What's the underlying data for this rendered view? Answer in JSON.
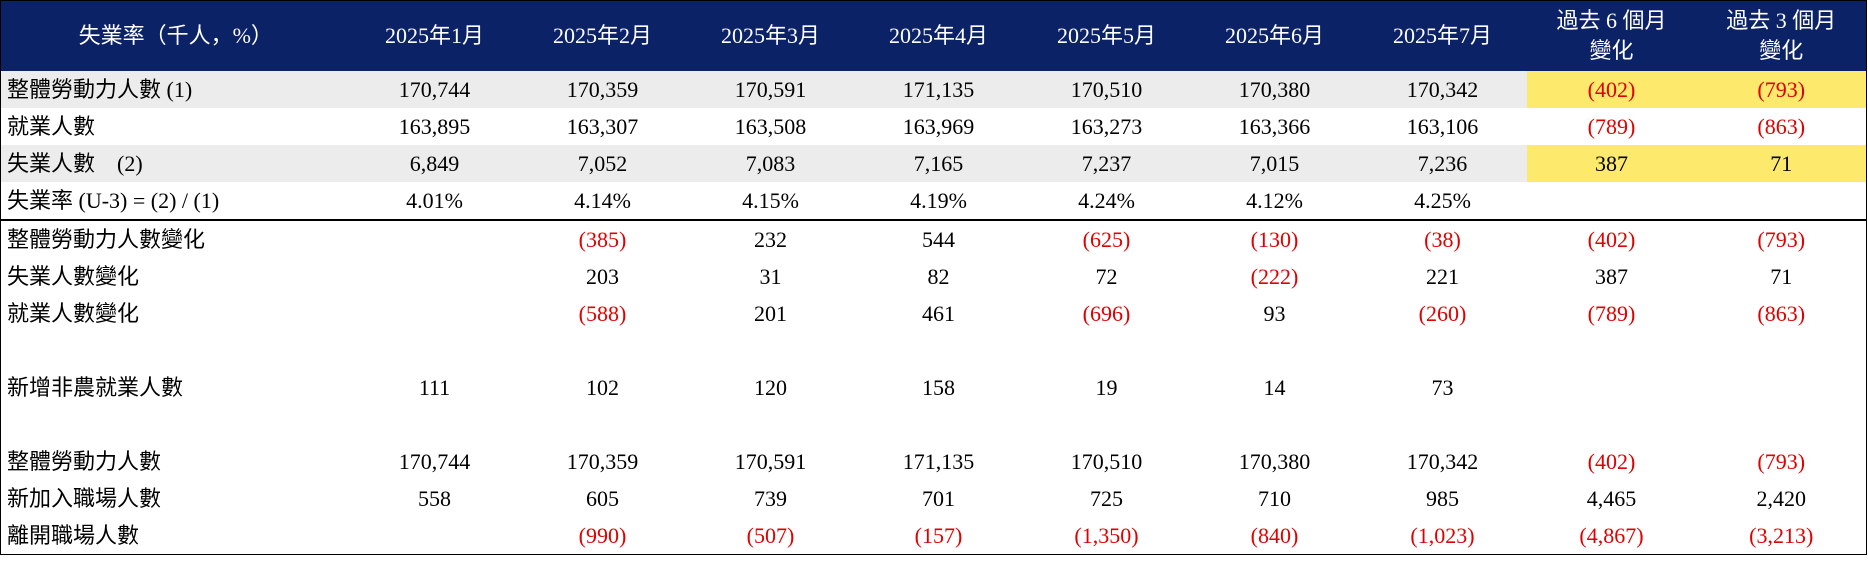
{
  "table": {
    "header": [
      [
        "失業率（千人，%）"
      ],
      [
        "2025年1月"
      ],
      [
        "2025年2月"
      ],
      [
        "2025年3月"
      ],
      [
        "2025年4月"
      ],
      [
        "2025年5月"
      ],
      [
        "2025年6月"
      ],
      [
        "2025年7月"
      ],
      [
        "過去 6 個月",
        "變化"
      ],
      [
        "過去 3 個月",
        "變化"
      ]
    ],
    "sections": [
      [
        {
          "label": "整體勞動力人數 (1)",
          "cells": [
            "170,744",
            "170,359",
            "170,591",
            "171,135",
            "170,510",
            "170,380",
            "170,342",
            "(402)",
            "(793)"
          ]
        },
        {
          "label": "就業人數",
          "cells": [
            "163,895",
            "163,307",
            "163,508",
            "163,969",
            "163,273",
            "163,366",
            "163,106",
            "(789)",
            "(863)"
          ]
        },
        {
          "label": "失業人數　(2)",
          "cells": [
            "6,849",
            "7,052",
            "7,083",
            "7,165",
            "7,237",
            "7,015",
            "7,236",
            "387",
            "71"
          ]
        },
        {
          "label": "失業率 (U-3) = (2) / (1)",
          "cells": [
            "4.01%",
            "4.14%",
            "4.15%",
            "4.19%",
            "4.24%",
            "4.12%",
            "4.25%",
            null,
            null
          ]
        }
      ],
      [
        {
          "label": "整體勞動力人數變化",
          "cells": [
            null,
            "(385)",
            "232",
            "544",
            "(625)",
            "(130)",
            "(38)",
            "(402)",
            "(793)"
          ]
        },
        {
          "label": "失業人數變化",
          "cells": [
            null,
            "203",
            "31",
            "82",
            "72",
            "(222)",
            "221",
            "387",
            "71"
          ]
        },
        {
          "label": "就業人數變化",
          "cells": [
            null,
            "(588)",
            "201",
            "461",
            "(696)",
            "93",
            "(260)",
            "(789)",
            "(863)"
          ]
        }
      ],
      [
        {
          "label": "新增非農就業人數",
          "cells": [
            "111",
            "102",
            "120",
            "158",
            "19",
            "14",
            "73",
            null,
            null
          ]
        }
      ],
      [
        {
          "label": "整體勞動力人數",
          "cells": [
            "170,744",
            "170,359",
            "170,591",
            "171,135",
            "170,510",
            "170,380",
            "170,342",
            "(402)",
            "(793)"
          ]
        },
        {
          "label": "新加入職場人數",
          "cells": [
            "558",
            "605",
            "739",
            "701",
            "725",
            "710",
            "985",
            "4,465",
            "2,420"
          ]
        },
        {
          "label": "離開職場人數",
          "cells": [
            null,
            "(990)",
            "(507)",
            "(157)",
            "(1,350)",
            "(840)",
            "(1,023)",
            "(4,867)",
            "(3,213)"
          ]
        }
      ]
    ]
  }
}
